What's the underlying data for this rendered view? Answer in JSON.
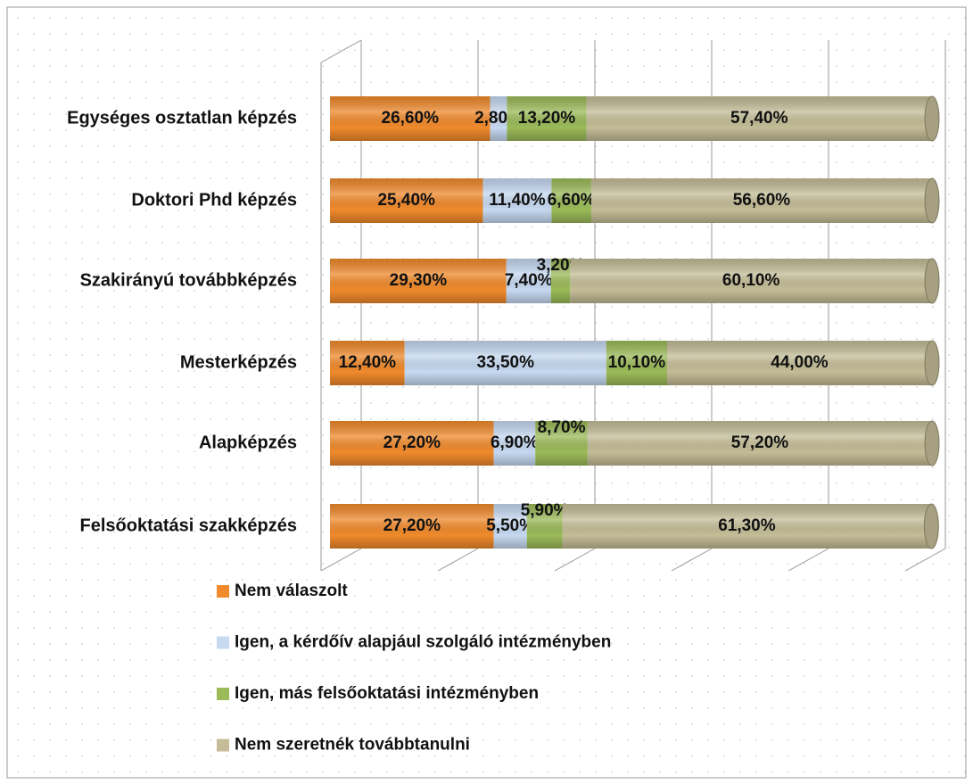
{
  "chart_data": {
    "type": "stacked-bar-horizontal",
    "categories": [
      "Egységes osztatlan képzés",
      "Doktori Phd képzés",
      "Szakirányú továbbképzés",
      "Mesterképzés",
      "Alapképzés",
      "Felsőoktatási szakképzés"
    ],
    "series": [
      {
        "name": "Nem válaszolt",
        "color": "#f08a2c",
        "values": [
          26.6,
          25.4,
          29.3,
          12.4,
          27.2,
          27.2
        ],
        "value_labels": [
          "26,60%",
          "25,40%",
          "29,30%",
          "12,40%",
          "27,20%",
          "27,20%"
        ]
      },
      {
        "name": "Igen, a kérdőív alapjául szolgáló intézményben",
        "color": "#c6d9f1",
        "values": [
          2.8,
          11.4,
          7.4,
          33.5,
          6.9,
          5.5
        ],
        "value_labels": [
          "2,80%",
          "11,40%",
          "7,40%",
          "33,50%",
          "6,90%",
          "5,50%"
        ]
      },
      {
        "name": "Igen, más felsőoktatási intézményben",
        "color": "#9bbb59",
        "values": [
          13.2,
          6.6,
          3.2,
          10.1,
          8.7,
          5.9
        ],
        "value_labels": [
          "13,20%",
          "6,60%",
          "3,20%",
          "10,10%",
          "8,70%",
          "5,90%"
        ]
      },
      {
        "name": "Nem szeretnék továbbtanulni",
        "color": "#c4bd97",
        "values": [
          57.4,
          56.6,
          60.1,
          44.0,
          57.2,
          61.3
        ],
        "value_labels": [
          "57,40%",
          "56,60%",
          "60,10%",
          "44,00%",
          "57,20%",
          "61,30%"
        ]
      }
    ],
    "xlim": [
      0,
      100
    ],
    "xticks": [
      0,
      20,
      40,
      60,
      80,
      100
    ],
    "grid": true
  }
}
